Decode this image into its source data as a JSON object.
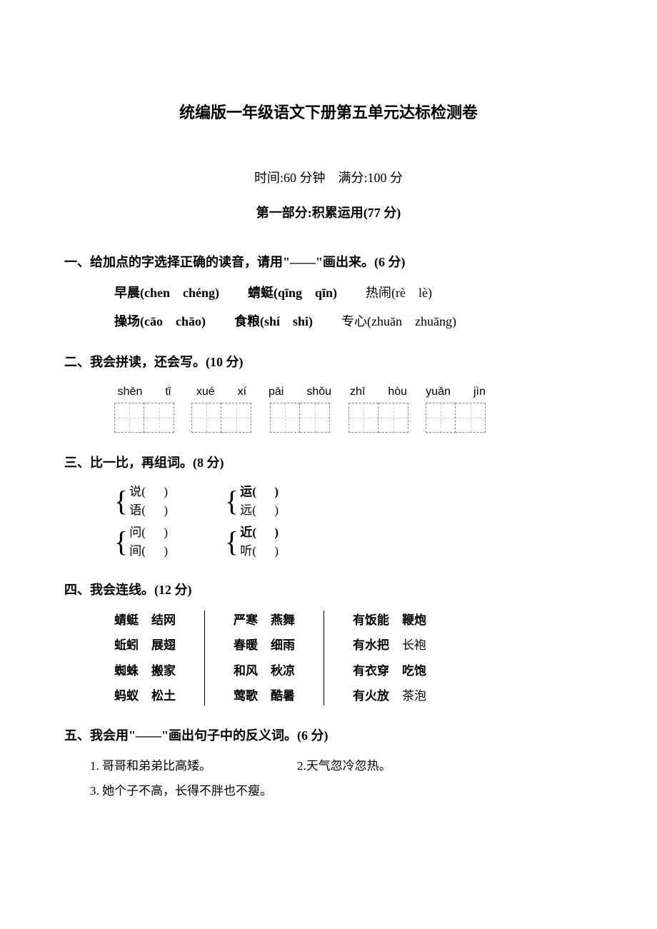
{
  "title": "统编版一年级语文下册第五单元达标检测卷",
  "subtitle": "时间:60 分钟　满分:100 分",
  "part_header": "第一部分:积累运用(77 分)",
  "s1": {
    "header": "一、给加点的字选择正确的读音，请用\"——\"画出来。(6 分)",
    "row1_a": "早晨(chen　chéng)",
    "row1_b": "蜻蜓(qīng　qīn)",
    "row1_c": "热闹(rè　lè)",
    "row2_a": "操场(cāo　chāo)",
    "row2_b": "食粮(shí　shi)",
    "row2_c": "专心(zhuān　zhuāng)"
  },
  "s2": {
    "header": "二、我会拼读，还会写。(10 分)",
    "pairs": [
      {
        "a": "shēn",
        "b": "tǐ"
      },
      {
        "a": "xué",
        "b": "xí"
      },
      {
        "a": "pāi",
        "b": "shǒu"
      },
      {
        "a": "zhī",
        "b": "hòu"
      },
      {
        "a": "yuǎn",
        "b": "jìn"
      }
    ]
  },
  "s3": {
    "header": "三、比一比，再组词。(8 分)",
    "g1a": "说",
    "g1b": "语",
    "g2a": "运",
    "g2b": "远",
    "g3a": "问",
    "g3b": "间",
    "g4a": "近",
    "g4b": "听"
  },
  "s4": {
    "header": "四、我会连线。(12 分)",
    "col1_left": [
      "蜻蜓",
      "蚯蚓",
      "蜘蛛",
      "蚂蚁"
    ],
    "col1_right": [
      "结网",
      "展翅",
      "搬家",
      "松土"
    ],
    "col2_left": [
      "严寒",
      "春暖",
      "和风",
      "莺歌"
    ],
    "col2_right": [
      "燕舞",
      "细雨",
      "秋凉",
      "酷暑"
    ],
    "col3_left": [
      "有饭能",
      "有水把",
      "有衣穿",
      "有火放"
    ],
    "col3_right": [
      "鞭炮",
      "长袍",
      "吃饱",
      "茶泡"
    ]
  },
  "s5": {
    "header": "五、我会用\"——\"画出句子中的反义词。(6 分)",
    "q1": "1. 哥哥和弟弟比高矮。",
    "q2": "2.天气忽冷忽热。",
    "q3": "3. 她个子不高，长得不胖也不瘦。"
  },
  "style": {
    "page_bg": "#ffffff",
    "text_color": "#000000",
    "title_fontsize": 22,
    "body_fontsize": 18,
    "dash_color": "#888888"
  }
}
